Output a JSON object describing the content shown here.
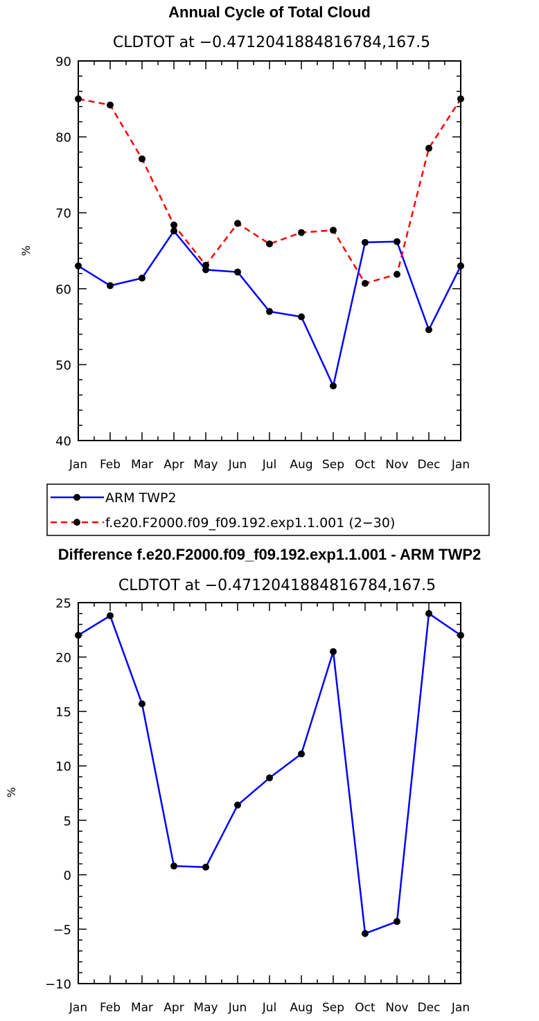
{
  "chart_data": [
    {
      "type": "line",
      "title": "Annual Cycle of Total Cloud",
      "subtitle": "CLDTOT at −0.4712041884816784,167.5",
      "xlabel": "",
      "ylabel": "%",
      "categories": [
        "Jan",
        "Feb",
        "Mar",
        "Apr",
        "May",
        "Jun",
        "Jul",
        "Aug",
        "Sep",
        "Oct",
        "Nov",
        "Dec",
        "Jan"
      ],
      "ylim": [
        40,
        90
      ],
      "yticks": [
        40,
        50,
        60,
        70,
        80,
        90
      ],
      "yticklabels": [
        "40",
        "50",
        "60",
        "70",
        "80",
        "90"
      ],
      "series": [
        {
          "name": "ARM TWP2",
          "color": "#0000ff",
          "dash": "solid",
          "values": [
            63.0,
            60.4,
            61.4,
            67.6,
            62.5,
            62.2,
            57.0,
            56.3,
            47.2,
            66.1,
            66.2,
            54.6,
            63.0
          ]
        },
        {
          "name": "f.e20.F2000.f09_f09.192.exp1.1.001 (2−30)",
          "color": "#ff0000",
          "dash": "dashed",
          "values": [
            85.0,
            84.2,
            77.1,
            68.4,
            63.1,
            68.6,
            65.9,
            67.4,
            67.7,
            60.7,
            61.9,
            78.5,
            85.0
          ]
        }
      ]
    },
    {
      "type": "line",
      "title": "Difference f.e20.F2000.f09_f09.192.exp1.1.001 - ARM TWP2",
      "subtitle": "CLDTOT at −0.4712041884816784,167.5",
      "xlabel": "",
      "ylabel": "%",
      "categories": [
        "Jan",
        "Feb",
        "Mar",
        "Apr",
        "May",
        "Jun",
        "Jul",
        "Aug",
        "Sep",
        "Oct",
        "Nov",
        "Dec",
        "Jan"
      ],
      "ylim": [
        -10,
        25
      ],
      "yticks": [
        -10,
        -5,
        0,
        5,
        10,
        15,
        20,
        25
      ],
      "yticklabels": [
        "−10",
        "−5",
        "0",
        "5",
        "10",
        "15",
        "20",
        "25"
      ],
      "series": [
        {
          "name": "Difference",
          "color": "#0000ff",
          "dash": "solid",
          "values": [
            22.0,
            23.8,
            15.7,
            0.8,
            0.7,
            6.4,
            8.9,
            11.1,
            20.5,
            -5.4,
            -4.3,
            24.0,
            22.0
          ]
        }
      ]
    }
  ]
}
